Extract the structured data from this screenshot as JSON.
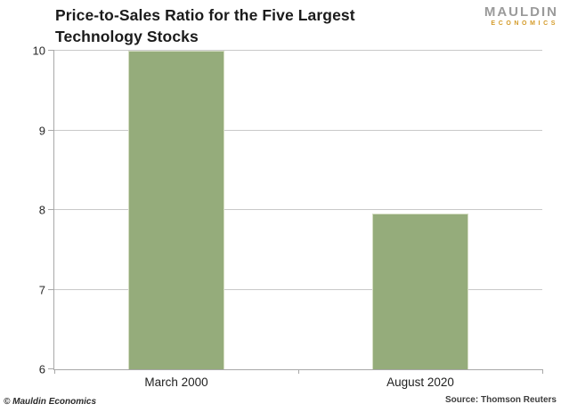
{
  "title": {
    "line1": "Price-to-Sales Ratio for the Five Largest",
    "line2": "Technology Stocks"
  },
  "logo": {
    "name": "MAULDIN",
    "sub": "ECONOMICS"
  },
  "footer": {
    "copyright": "© Mauldin Economics",
    "source": "Source: Thomson Reuters"
  },
  "colors": {
    "bar": "#95ac7b",
    "bar_border": "#d5ddc3",
    "gridline": "#c9c9c9",
    "axis": "#a8a8a8",
    "title_text": "#1b1b1b",
    "logo_main": "#9a9a9a",
    "logo_sub": "#d49b2a"
  },
  "chart_data": {
    "type": "bar",
    "title": "Price-to-Sales Ratio for the Five Largest Technology Stocks",
    "categories": [
      "March 2000",
      "August 2020"
    ],
    "values": [
      10.0,
      7.96
    ],
    "xlabel": "",
    "ylabel": "",
    "ylim": [
      6,
      10
    ],
    "yticks": [
      6,
      7,
      8,
      9,
      10
    ],
    "grid": true,
    "legend": false,
    "bar_color": "#95ac7b",
    "source": "Source: Thomson Reuters"
  }
}
